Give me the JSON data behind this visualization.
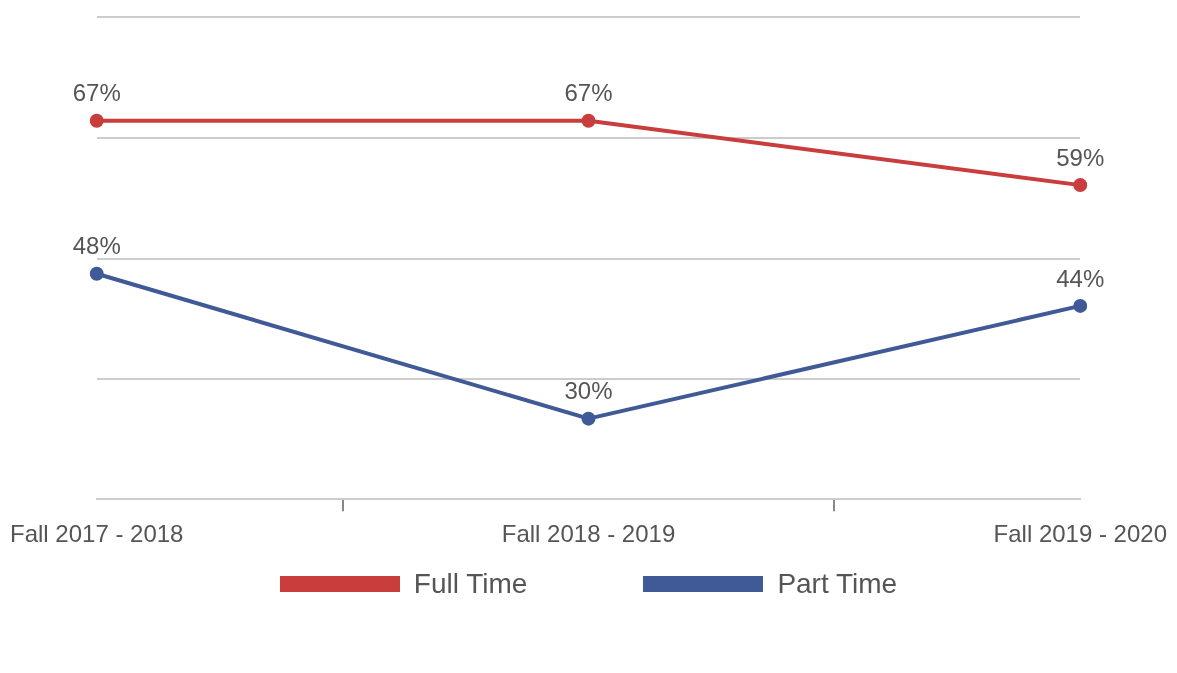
{
  "chart_data": {
    "type": "line",
    "categories": [
      "Fall 2017 - 2018",
      "Fall 2018 - 2019",
      "Fall 2019 - 2020"
    ],
    "series": [
      {
        "name": "Full Time",
        "color": "#c93d3d",
        "values": [
          67,
          67,
          59
        ],
        "value_labels": [
          "67%",
          "67%",
          "59%"
        ]
      },
      {
        "name": "Part Time",
        "color": "#3f5a96",
        "values": [
          48,
          30,
          44
        ],
        "value_labels": [
          "48%",
          "30%",
          "44%"
        ]
      }
    ],
    "tick_labels": "x",
    "legend": "bottom",
    "marker": "circle",
    "line_style": "solid"
  }
}
